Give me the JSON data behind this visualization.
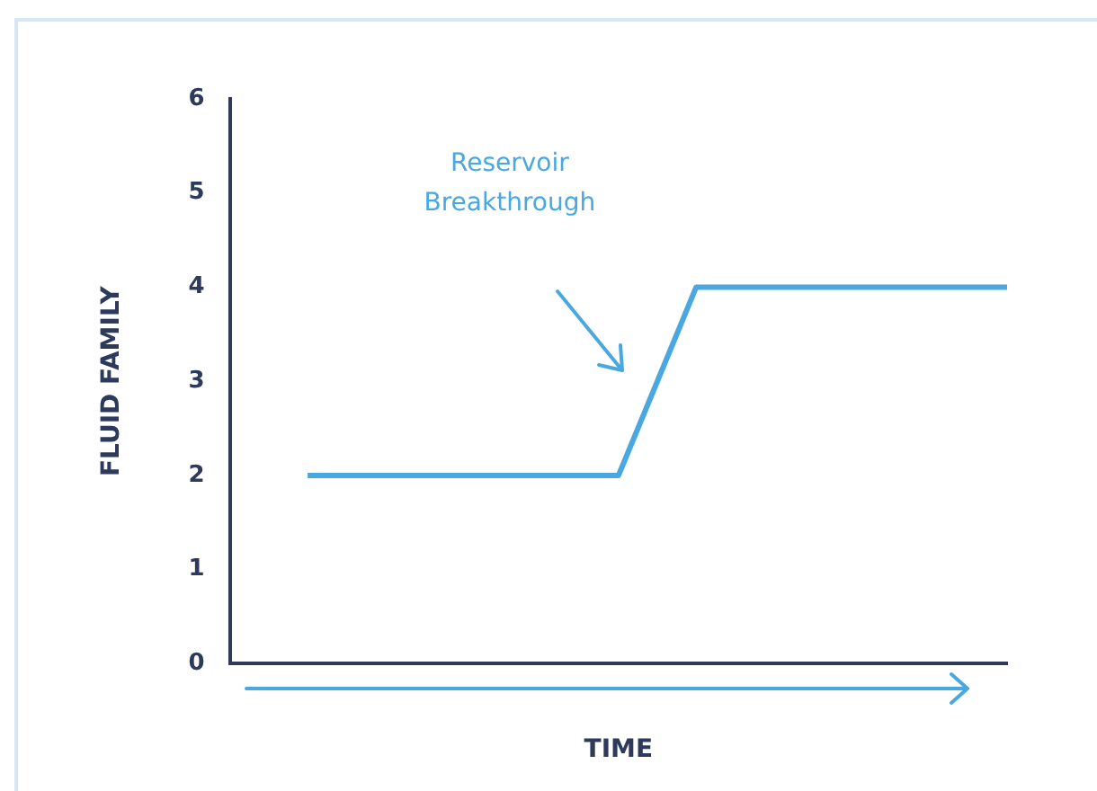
{
  "chart_data": {
    "type": "line",
    "xlabel": "TIME",
    "ylabel": "FLUID FAMILY",
    "categories": [
      null,
      null,
      null,
      null,
      null,
      null,
      null,
      null,
      null,
      null,
      null
    ],
    "series": [
      {
        "color": "#4aa8e0",
        "values": [
          null,
          2,
          2,
          2,
          2,
          2,
          4,
          4,
          4,
          4,
          4
        ]
      }
    ],
    "ylim": [
      0,
      6
    ],
    "yticks": [
      0,
      1,
      2,
      3,
      4,
      5,
      6
    ],
    "grid": false,
    "legend": false,
    "marker": "none",
    "line_style": "solid",
    "tick_labels": "y",
    "annotations": [
      "Reservoir Breakthrough"
    ]
  }
}
